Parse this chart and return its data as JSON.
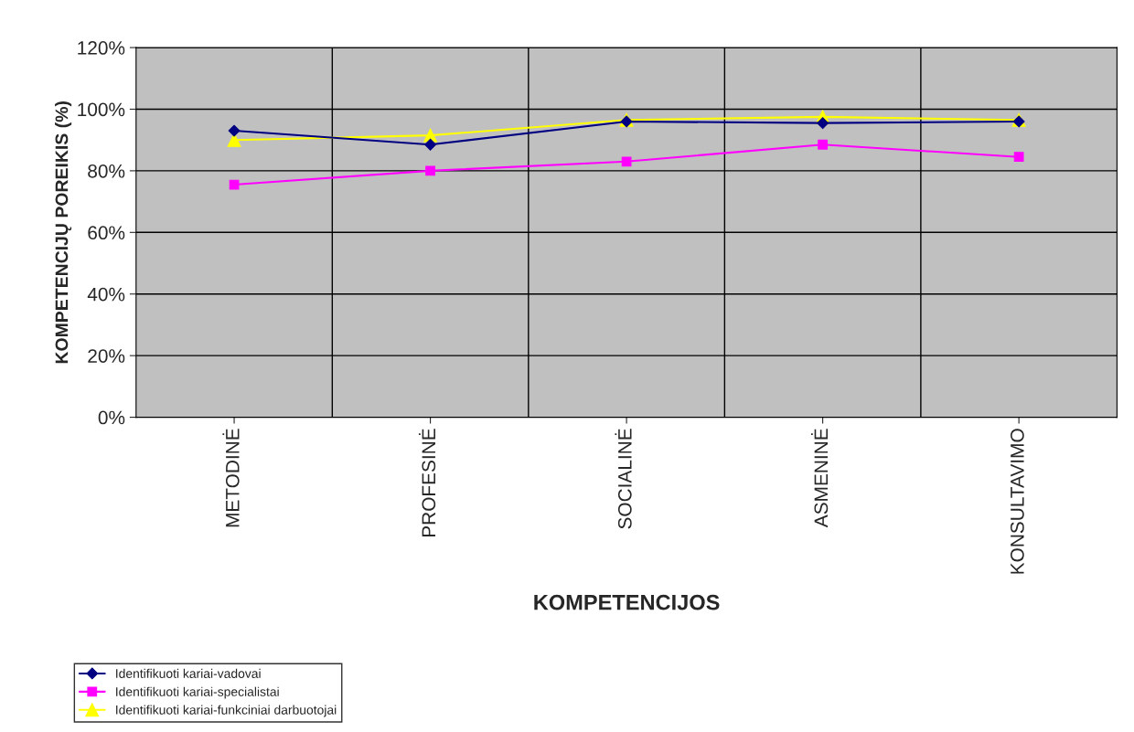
{
  "chart_data": {
    "type": "line",
    "xlabel": "KOMPETENCIJOS",
    "ylabel": "KOMPETENCIJŲ POREIKIS (%)",
    "categories": [
      "METODINĖ",
      "PROFESINĖ",
      "SOCIALINĖ",
      "ASMENINĖ",
      "KONSULTAVIMO"
    ],
    "series": [
      {
        "name": "Identifikuoti kariai-vadovai",
        "color": "#000080",
        "marker": "diamond",
        "values": [
          93,
          88.5,
          96,
          95.5,
          96
        ]
      },
      {
        "name": "Identifikuoti kariai-specialistai",
        "color": "#ff00ff",
        "marker": "square",
        "values": [
          75.5,
          80,
          83,
          88.5,
          84.5
        ]
      },
      {
        "name": "Identifikuoti kariai-funkciniai darbuotojai",
        "color": "#ffff00",
        "marker": "triangle",
        "values": [
          90,
          91.5,
          96.5,
          97.5,
          96.5
        ]
      }
    ],
    "ylim": [
      0,
      120
    ],
    "yticks": [
      {
        "value": 0,
        "label": "0%"
      },
      {
        "value": 20,
        "label": "20%"
      },
      {
        "value": 40,
        "label": "40%"
      },
      {
        "value": 60,
        "label": "60%"
      },
      {
        "value": 80,
        "label": "80%"
      },
      {
        "value": 100,
        "label": "100%"
      },
      {
        "value": 120,
        "label": "120%"
      }
    ],
    "grid": true,
    "legend": "bottom left"
  }
}
